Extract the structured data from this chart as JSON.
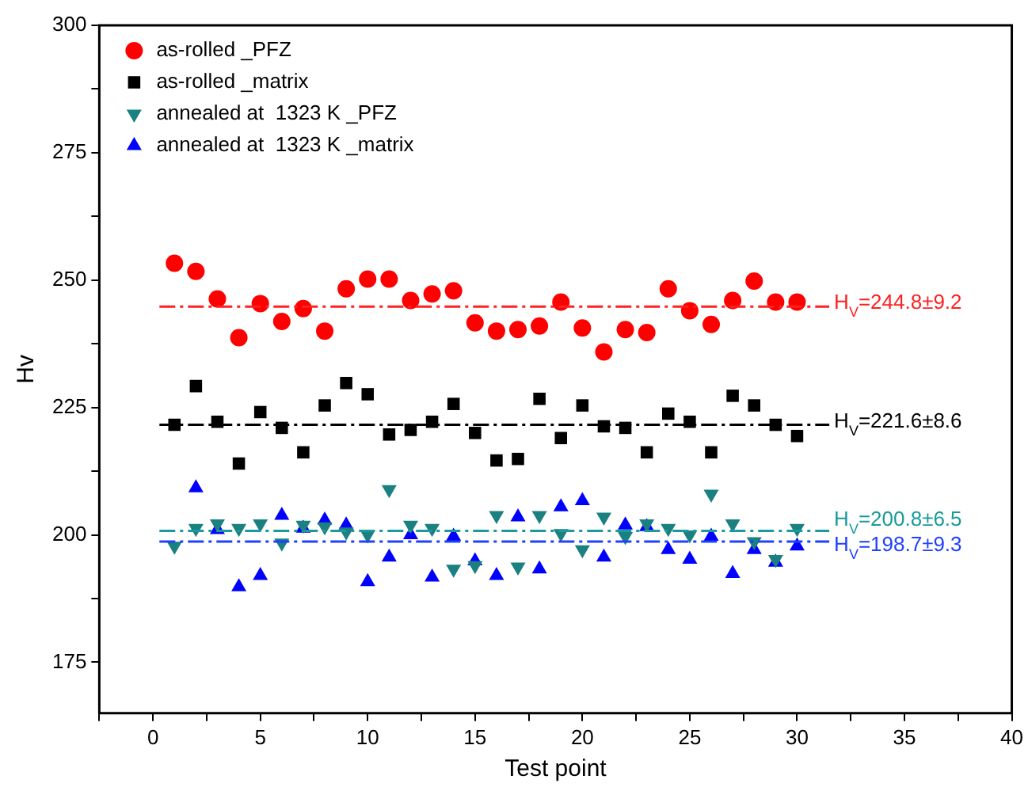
{
  "chart_data": {
    "type": "scatter",
    "xlabel": "Test point",
    "ylabel": "Hv",
    "x": [
      1,
      2,
      3,
      4,
      5,
      6,
      7,
      8,
      9,
      10,
      11,
      12,
      13,
      14,
      15,
      16,
      17,
      18,
      19,
      20,
      21,
      22,
      23,
      24,
      25,
      26,
      27,
      28,
      29,
      30
    ],
    "series": [
      {
        "name": "as-rolled _PFZ",
        "color": "#ff0000",
        "marker": "circle",
        "values": [
          253.3,
          251.7,
          246.3,
          238.7,
          245.4,
          241.9,
          244.4,
          240,
          248.3,
          250.2,
          250.2,
          246,
          247.3,
          247.9,
          241.6,
          240,
          240.3,
          241,
          245.7,
          240.6,
          235.9,
          240.3,
          239.7,
          248.3,
          244,
          241.3,
          246,
          249.8,
          245.7,
          245.7
        ]
      },
      {
        "name": "as-rolled _matrix",
        "color": "#000000",
        "marker": "square",
        "values": [
          221.6,
          229.2,
          222.2,
          214,
          224.1,
          221,
          216.2,
          225.4,
          229.8,
          227.6,
          219.7,
          220.6,
          222.2,
          225.7,
          220,
          214.6,
          214.9,
          226.7,
          219,
          225.4,
          221.3,
          221,
          216.2,
          223.8,
          222.2,
          216.2,
          227.3,
          225.4,
          221.6,
          219.4
        ]
      },
      {
        "name": "annealed at  1323 K _PFZ",
        "color": "#1a8080",
        "marker": "triangle-down",
        "values": [
          197.8,
          201.3,
          202.2,
          201.3,
          202.2,
          198.4,
          201.9,
          201.6,
          200.6,
          200,
          208.9,
          201.9,
          201.3,
          193.3,
          194,
          203.8,
          193.7,
          203.8,
          200.3,
          197.1,
          203.5,
          199.7,
          202.2,
          201.3,
          200,
          208,
          202.2,
          198.7,
          195.2,
          201.3
        ]
      },
      {
        "name": "annealed at  1323 K _matrix",
        "color": "#0000ff",
        "marker": "triangle",
        "values": [
          null,
          209.2,
          201,
          189.8,
          192,
          203.8,
          201.3,
          202.9,
          201.9,
          190.8,
          195.6,
          200,
          191.7,
          199.7,
          194.9,
          192,
          203.5,
          193.3,
          205.5,
          206.7,
          195.6,
          201.9,
          201.6,
          197.1,
          195.2,
          199.7,
          192.4,
          197.1,
          194.6,
          197.8
        ]
      }
    ],
    "ref_lines": [
      {
        "axis": "y",
        "value": 244.8,
        "label": "H$_{V}$=244.8±9.2",
        "color": "#ff2020",
        "line_style": "dashed"
      },
      {
        "axis": "y",
        "value": 221.6,
        "label": "H$_{V}$=221.6±8.6",
        "color": "#000000",
        "line_style": "dashed"
      },
      {
        "axis": "y",
        "value": 200.8,
        "label": "H$_{V}$=200.8±6.5",
        "color": "#1a9a9a",
        "line_style": "dashed"
      },
      {
        "axis": "y",
        "value": 198.7,
        "label": "H$_{V}$=198.7±9.3",
        "color": "#2040ff",
        "line_style": "dashed"
      }
    ],
    "xlim": [
      -2.5,
      40
    ],
    "xticks": [
      {
        "value": -2.5,
        "label": null
      },
      0,
      {
        "value": 2.5,
        "label": null
      },
      5,
      {
        "value": 7.5,
        "label": null
      },
      10,
      {
        "value": 12.5,
        "label": null
      },
      15,
      {
        "value": 17.5,
        "label": null
      },
      20,
      {
        "value": 22.5,
        "label": null
      },
      25,
      {
        "value": 27.5,
        "label": null
      },
      30,
      {
        "value": 32.5,
        "label": null
      },
      35,
      {
        "value": 37.5,
        "label": null
      },
      40
    ],
    "ylim": [
      165,
      300
    ],
    "yticks": [
      175,
      {
        "value": 187.5,
        "label": null
      },
      200,
      {
        "value": 212.5,
        "label": null
      },
      225,
      {
        "value": 237.5,
        "label": null
      },
      250,
      {
        "value": 262.5,
        "label": null
      },
      275,
      {
        "value": 287.5,
        "label": null
      },
      300
    ],
    "grid": false,
    "legend": "top left"
  }
}
